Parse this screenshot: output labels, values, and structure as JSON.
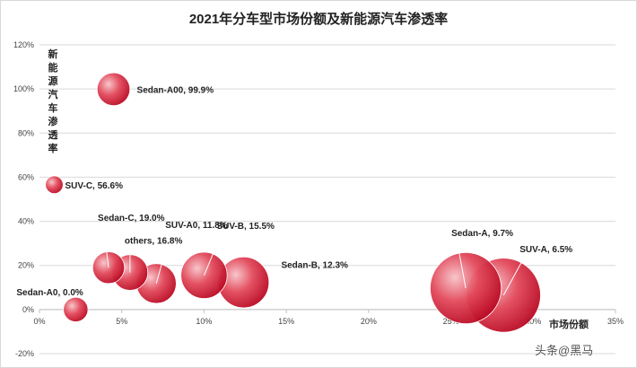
{
  "chart_data": {
    "type": "scatter",
    "subtype": "bubble",
    "title": "2021年分车型市场份额及新能源汽车渗透率",
    "xlabel": "市场份额",
    "ylabel": "新能源汽车渗透率",
    "xlim": [
      0,
      35
    ],
    "ylim": [
      -20,
      120
    ],
    "x_ticks": [
      "0%",
      "5%",
      "10%",
      "15%",
      "20%",
      "25%",
      "30%",
      "35%"
    ],
    "y_ticks": [
      "-20%",
      "0%",
      "20%",
      "40%",
      "60%",
      "80%",
      "100%",
      "120%"
    ],
    "grid": "horizontal",
    "bubble_color": "#d9243c",
    "points": [
      {
        "label": "Sedan-A00, 99.9%",
        "x": 4.5,
        "y": 99.9,
        "size": 4.5
      },
      {
        "label": "SUV-C, 56.6%",
        "x": 0.9,
        "y": 56.6,
        "size": 0.9
      },
      {
        "label": "Sedan-C, 19.0%",
        "x": 4.2,
        "y": 19.0,
        "size": 4.2
      },
      {
        "label": "others, 16.8%",
        "x": 5.5,
        "y": 16.8,
        "size": 5.5
      },
      {
        "label": "SUV-A0, 11.8%",
        "x": 7.1,
        "y": 11.8,
        "size": 7.1
      },
      {
        "label": "SUV-B, 15.5%",
        "x": 10.0,
        "y": 15.5,
        "size": 10.0
      },
      {
        "label": "Sedan-B, 12.3%",
        "x": 12.4,
        "y": 12.3,
        "size": 12.4
      },
      {
        "label": "Sedan-A0, 0.0%",
        "x": 2.2,
        "y": 0.0,
        "size": 2.2
      },
      {
        "label": "Sedan-A, 9.7%",
        "x": 25.9,
        "y": 9.7,
        "size": 25.9
      },
      {
        "label": "SUV-A, 6.5%",
        "x": 28.2,
        "y": 6.5,
        "size": 28.2
      }
    ]
  },
  "watermark": "头条@黑马"
}
